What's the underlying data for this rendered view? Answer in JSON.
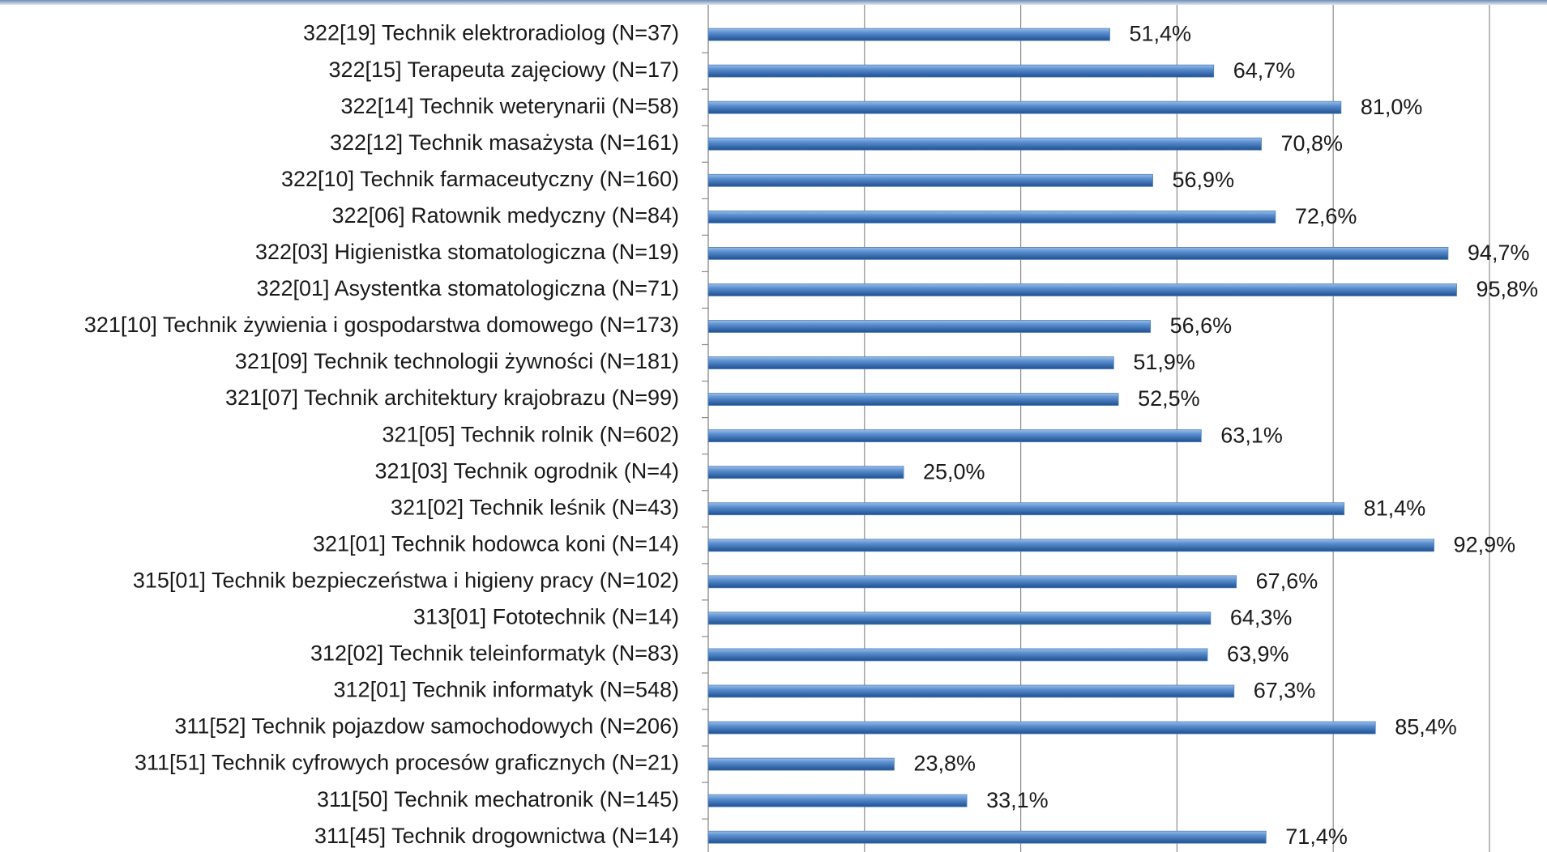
{
  "chart_data": {
    "type": "barh",
    "categories": [
      "322[19] Technik elektroradiolog (N=37)",
      "322[15] Terapeuta zajęciowy (N=17)",
      "322[14] Technik weterynarii (N=58)",
      "322[12] Technik masażysta (N=161)",
      "322[10] Technik farmaceutyczny (N=160)",
      "322[06] Ratownik medyczny (N=84)",
      "322[03] Higienistka stomatologiczna (N=19)",
      "322[01] Asystentka stomatologiczna (N=71)",
      "321[10] Technik żywienia i gospodarstwa domowego (N=173)",
      "321[09] Technik technologii żywności (N=181)",
      "321[07] Technik architektury krajobrazu (N=99)",
      "321[05] Technik rolnik (N=602)",
      "321[03] Technik ogrodnik (N=4)",
      "321[02] Technik leśnik (N=43)",
      "321[01] Technik hodowca koni (N=14)",
      "315[01] Technik bezpieczeństwa i higieny pracy (N=102)",
      "313[01] Fototechnik (N=14)",
      "312[02] Technik teleinformatyk (N=83)",
      "312[01] Technik informatyk (N=548)",
      "311[52] Technik pojazdow samochodowych (N=206)",
      "311[51] Technik cyfrowych procesów graficznych (N=21)",
      "311[50] Technik mechatronik (N=145)",
      "311[45] Technik drogownictwa (N=14)"
    ],
    "values": [
      51.4,
      64.7,
      81.0,
      70.8,
      56.9,
      72.6,
      94.7,
      95.8,
      56.6,
      51.9,
      52.5,
      63.1,
      25.0,
      81.4,
      92.9,
      67.6,
      64.3,
      63.9,
      67.3,
      85.4,
      23.8,
      33.1,
      71.4
    ],
    "value_labels": [
      "51,4%",
      "64,7%",
      "81,0%",
      "70,8%",
      "56,9%",
      "72,6%",
      "94,7%",
      "95,8%",
      "56,6%",
      "51,9%",
      "52,5%",
      "63,1%",
      "25,0%",
      "81,4%",
      "92,9%",
      "67,6%",
      "64,3%",
      "63,9%",
      "67,3%",
      "85,4%",
      "23,8%",
      "33,1%",
      "71,4%"
    ],
    "color": "#4f81bd",
    "xlim": [
      0,
      100
    ],
    "xticks": [
      0,
      20,
      40,
      60,
      80,
      100
    ],
    "grid": true
  }
}
